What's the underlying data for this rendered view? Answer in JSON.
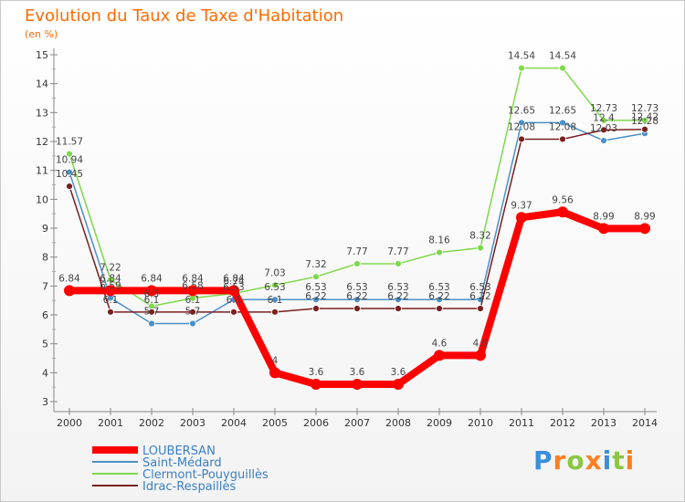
{
  "title": "Evolution du Taux de Taxe d'Habitation",
  "subtitle": "(en %)",
  "logo": {
    "text": "Proxiti",
    "colors": [
      "#3a8fd9",
      "#ff7f1e",
      "#8ac640",
      "#ff7f1e",
      "#3a8fd9",
      "#8ac640",
      "#ff7f1e"
    ]
  },
  "chart_data": {
    "type": "line",
    "x": [
      2000,
      2001,
      2002,
      2003,
      2004,
      2005,
      2006,
      2007,
      2008,
      2009,
      2010,
      2011,
      2012,
      2013,
      2014
    ],
    "ylim": [
      3,
      15
    ],
    "yticks": [
      3,
      4,
      5,
      6,
      7,
      8,
      9,
      10,
      11,
      12,
      13,
      14,
      15
    ],
    "grid": false,
    "legend_position": "bottom-left",
    "series": [
      {
        "name": "LOUBERSAN",
        "color": "#ff0000",
        "values": [
          6.84,
          6.84,
          6.84,
          6.84,
          6.84,
          4,
          3.6,
          3.6,
          3.6,
          4.6,
          4.6,
          9.37,
          9.56,
          8.99,
          8.99
        ],
        "labels": [
          "6.84",
          "6.84",
          "6.84",
          "6.84",
          "6.84",
          "4",
          "3.6",
          "3.6",
          "3.6",
          "4.6",
          "4.6",
          "9.37",
          "9.56",
          "8.99",
          "8.99"
        ]
      },
      {
        "name": "Saint-Médard",
        "color": "#4a90c8",
        "values": [
          10.94,
          6.59,
          5.7,
          5.7,
          6.53,
          6.53,
          6.53,
          6.53,
          6.53,
          6.53,
          6.53,
          12.65,
          12.65,
          12.03,
          12.28
        ],
        "labels": [
          "10.94",
          "6.59",
          "5.7",
          "5.7",
          "6.53",
          "6.53",
          "6.53",
          "6.53",
          "6.53",
          "6.53",
          "6.53",
          "12.65",
          "12.65",
          "12.03",
          "12.28"
        ]
      },
      {
        "name": "Clermont-Pouyguillès",
        "color": "#7dd94a",
        "values": [
          11.57,
          7.22,
          6.3,
          6.58,
          6.74,
          7.03,
          7.32,
          7.77,
          7.77,
          8.16,
          8.32,
          14.54,
          14.54,
          12.73,
          12.73
        ],
        "labels": [
          "11.57",
          "7.22",
          "6.3",
          "6.58",
          "6.74",
          "7.03",
          "7.32",
          "7.77",
          "7.77",
          "8.16",
          "8.32",
          "14.54",
          "14.54",
          "12.73",
          "12.73"
        ]
      },
      {
        "name": "Idrac-Respaillès",
        "color": "#7a1f1f",
        "values": [
          10.45,
          6.1,
          6.1,
          6.1,
          6.1,
          6.1,
          6.22,
          6.22,
          6.22,
          6.22,
          6.22,
          12.08,
          12.08,
          12.4,
          12.42
        ],
        "labels": [
          "10.45",
          "6.1",
          "6.1",
          "6.1",
          "6.1",
          "6.1",
          "6.22",
          "6.22",
          "6.22",
          "6.22",
          "6.22",
          "12.08",
          "12.08",
          "12.4",
          "12.42"
        ]
      }
    ]
  }
}
